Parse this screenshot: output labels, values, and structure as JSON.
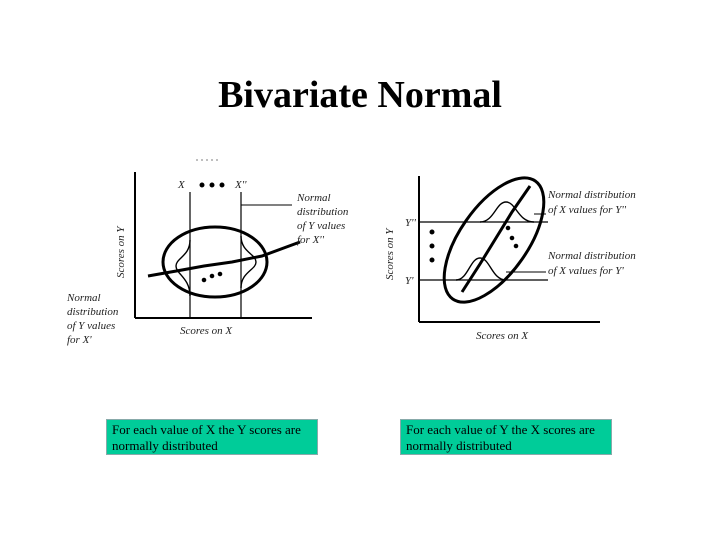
{
  "title": "Bivariate Normal",
  "left_figure": {
    "y_axis_label": "Scores on Y",
    "x_axis_label": "Scores on X",
    "x_marker_left": "X",
    "x_marker_right": "X''",
    "annotation_right": [
      "Normal",
      "distribution",
      "of Y values",
      "for X''"
    ],
    "annotation_left": [
      "Normal",
      "distribution",
      "of Y values",
      "for X'"
    ]
  },
  "right_figure": {
    "y_axis_label": "Scores on Y",
    "x_axis_label": "Scores on X",
    "y_marker_top": "Y''",
    "y_marker_bottom": "Y'",
    "annotation_top": [
      "Normal distribution",
      "of X values for Y''"
    ],
    "annotation_bottom": [
      "Normal distribution",
      "of X values for Y'"
    ]
  },
  "captions": {
    "left": "For each value of X the Y scores are normally distributed",
    "right": "For each value of Y the X scores are normally distributed"
  }
}
